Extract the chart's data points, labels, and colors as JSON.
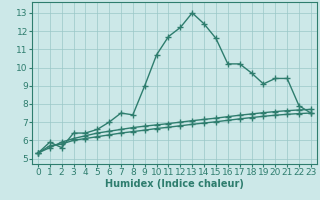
{
  "line1_x": [
    0,
    1,
    2,
    3,
    4,
    5,
    6,
    7,
    8,
    9,
    10,
    11,
    12,
    13,
    14,
    15,
    16,
    17,
    18,
    19,
    20,
    21,
    22,
    23
  ],
  "line1_y": [
    5.3,
    5.9,
    5.6,
    6.4,
    6.4,
    6.6,
    7.0,
    7.5,
    7.4,
    9.0,
    10.7,
    11.7,
    12.2,
    13.0,
    12.4,
    11.6,
    10.2,
    10.2,
    9.7,
    9.1,
    9.4,
    9.4,
    7.9,
    7.5
  ],
  "line2_x": [
    0,
    1,
    2,
    3,
    4,
    5,
    6,
    7,
    8,
    9,
    10,
    11,
    12,
    13,
    14,
    15,
    16,
    17,
    18,
    19,
    20,
    21,
    22,
    23
  ],
  "line2_y": [
    5.3,
    5.6,
    5.9,
    6.1,
    6.25,
    6.4,
    6.5,
    6.6,
    6.7,
    6.78,
    6.85,
    6.92,
    7.0,
    7.08,
    7.15,
    7.22,
    7.3,
    7.38,
    7.45,
    7.52,
    7.58,
    7.63,
    7.67,
    7.7
  ],
  "line3_x": [
    0,
    1,
    2,
    3,
    4,
    5,
    6,
    7,
    8,
    9,
    10,
    11,
    12,
    13,
    14,
    15,
    16,
    17,
    18,
    19,
    20,
    21,
    22,
    23
  ],
  "line3_y": [
    5.3,
    5.7,
    5.8,
    6.0,
    6.1,
    6.2,
    6.3,
    6.4,
    6.48,
    6.56,
    6.65,
    6.72,
    6.8,
    6.88,
    6.95,
    7.02,
    7.1,
    7.18,
    7.25,
    7.32,
    7.38,
    7.43,
    7.47,
    7.5
  ],
  "line_color": "#2e7d6e",
  "bg_color": "#cce8e8",
  "grid_color": "#9ac8c8",
  "xlabel": "Humidex (Indice chaleur)",
  "xticks": [
    0,
    1,
    2,
    3,
    4,
    5,
    6,
    7,
    8,
    9,
    10,
    11,
    12,
    13,
    14,
    15,
    16,
    17,
    18,
    19,
    20,
    21,
    22,
    23
  ],
  "xtick_labels": [
    "0",
    "1",
    "2",
    "3",
    "4",
    "5",
    "6",
    "7",
    "8",
    "9",
    "10",
    "11",
    "12",
    "13",
    "14",
    "15",
    "16",
    "17",
    "18",
    "19",
    "20",
    "21",
    "22",
    "23"
  ],
  "yticks": [
    5,
    6,
    7,
    8,
    9,
    10,
    11,
    12,
    13
  ],
  "ylim": [
    4.7,
    13.6
  ],
  "xlim": [
    -0.5,
    23.5
  ],
  "marker": "+",
  "markersize": 4,
  "linewidth": 1.0,
  "xlabel_fontsize": 7,
  "tick_fontsize": 6.5
}
